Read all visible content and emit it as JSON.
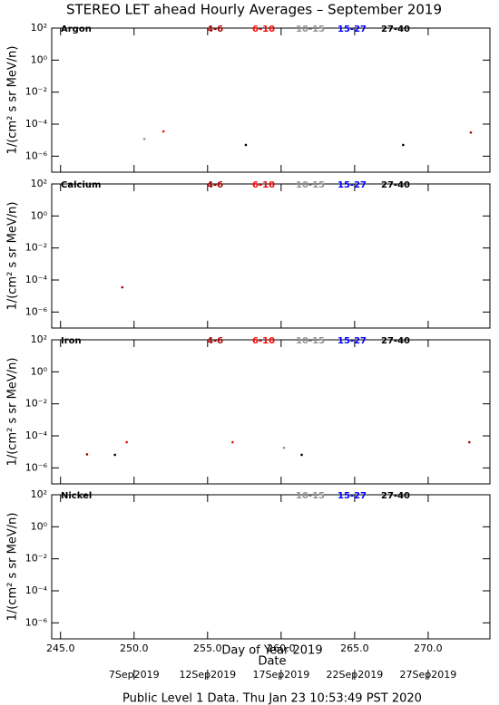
{
  "figure": {
    "title": "STEREO LET ahead Hourly Averages – September 2019",
    "xlabel": "Day of Year 2019",
    "date_label": "Date",
    "date_ticks": [
      {
        "value": 250,
        "label": "7Sep2019"
      },
      {
        "value": 255,
        "label": "12Sep2019"
      },
      {
        "value": 260,
        "label": "17Sep2019"
      },
      {
        "value": 265,
        "label": "22Sep2019"
      },
      {
        "value": 270,
        "label": "27Sep2019"
      }
    ],
    "footer": "Public Level 1 Data. Thu Jan 23 10:53:49 PST 2020"
  },
  "chart_data": [
    {
      "type": "scatter",
      "panel": "Argon",
      "ylabel": "1/(cm² s sr MeV/n)",
      "log_y": true,
      "xlim": [
        244.4,
        274.2
      ],
      "ylim": [
        1e-07,
        100
      ],
      "yticks": [
        {
          "value": 100,
          "label": "10²"
        },
        {
          "value": 1,
          "label": "10⁰"
        },
        {
          "value": 0.01,
          "label": "10⁻²"
        },
        {
          "value": 0.0001,
          "label": "10⁻⁴"
        },
        {
          "value": 1e-06,
          "label": "10⁻⁶"
        }
      ],
      "series": [
        {
          "name": "4-6",
          "color": "#a00000",
          "x": [
            272.9
          ],
          "values": [
            3e-05
          ]
        },
        {
          "name": "6-10",
          "color": "#ff0000",
          "x": [
            252.0
          ],
          "values": [
            3.5e-05
          ]
        },
        {
          "name": "10-15",
          "color": "#909090",
          "x": [
            250.7
          ],
          "values": [
            1.2e-05
          ]
        },
        {
          "name": "15-27",
          "color": "#0000ff",
          "x": [],
          "values": []
        },
        {
          "name": "27-40",
          "color": "#000000",
          "x": [
            257.6,
            268.3
          ],
          "values": [
            5e-06,
            5e-06
          ]
        }
      ]
    },
    {
      "type": "scatter",
      "panel": "Calcium",
      "ylabel": "1/(cm² s sr MeV/n)",
      "log_y": true,
      "xlim": [
        244.4,
        274.2
      ],
      "ylim": [
        1e-07,
        100
      ],
      "yticks": [
        {
          "value": 100,
          "label": "10²"
        },
        {
          "value": 1,
          "label": "10⁰"
        },
        {
          "value": 0.01,
          "label": "10⁻²"
        },
        {
          "value": 0.0001,
          "label": "10⁻⁴"
        },
        {
          "value": 1e-06,
          "label": "10⁻⁶"
        }
      ],
      "series": [
        {
          "name": "4-6",
          "color": "#a00000",
          "x": [
            249.2
          ],
          "values": [
            3.5e-05
          ]
        },
        {
          "name": "6-10",
          "color": "#ff0000",
          "x": [],
          "values": []
        },
        {
          "name": "10-15",
          "color": "#909090",
          "x": [],
          "values": []
        },
        {
          "name": "15-27",
          "color": "#0000ff",
          "x": [],
          "values": []
        },
        {
          "name": "27-40",
          "color": "#000000",
          "x": [],
          "values": []
        }
      ]
    },
    {
      "type": "scatter",
      "panel": "Iron",
      "ylabel": "1/(cm² s sr MeV/n)",
      "log_y": true,
      "xlim": [
        244.4,
        274.2
      ],
      "ylim": [
        1e-07,
        100
      ],
      "yticks": [
        {
          "value": 100,
          "label": "10²"
        },
        {
          "value": 1,
          "label": "10⁰"
        },
        {
          "value": 0.01,
          "label": "10⁻²"
        },
        {
          "value": 0.0001,
          "label": "10⁻⁴"
        },
        {
          "value": 1e-06,
          "label": "10⁻⁶"
        }
      ],
      "series": [
        {
          "name": "4-6",
          "color": "#a00000",
          "x": [
            246.8,
            272.8
          ],
          "values": [
            7e-06,
            4e-05
          ]
        },
        {
          "name": "6-10",
          "color": "#ff0000",
          "x": [
            249.5,
            256.7
          ],
          "values": [
            4e-05,
            4e-05
          ]
        },
        {
          "name": "10-15",
          "color": "#909090",
          "x": [
            260.2
          ],
          "values": [
            1.8e-05
          ]
        },
        {
          "name": "15-27",
          "color": "#0000ff",
          "x": [],
          "values": []
        },
        {
          "name": "27-40",
          "color": "#000000",
          "x": [
            248.7,
            261.4
          ],
          "values": [
            6.5e-06,
            6.5e-06
          ]
        }
      ]
    },
    {
      "type": "scatter",
      "panel": "Nickel",
      "ylabel": "1/(cm² s sr MeV/n)",
      "log_y": true,
      "xlim": [
        244.4,
        274.2
      ],
      "ylim": [
        1e-07,
        100
      ],
      "xticks": [
        {
          "value": 245,
          "label": "245.0"
        },
        {
          "value": 250,
          "label": "250.0"
        },
        {
          "value": 255,
          "label": "255.0"
        },
        {
          "value": 260,
          "label": "260.0"
        },
        {
          "value": 265,
          "label": "265.0"
        },
        {
          "value": 270,
          "label": "270.0"
        }
      ],
      "yticks": [
        {
          "value": 100,
          "label": "10²"
        },
        {
          "value": 1,
          "label": "10⁰"
        },
        {
          "value": 0.01,
          "label": "10⁻²"
        },
        {
          "value": 0.0001,
          "label": "10⁻⁴"
        },
        {
          "value": 1e-06,
          "label": "10⁻⁶"
        }
      ],
      "series": [
        {
          "name": "10-15",
          "color": "#909090",
          "x": [],
          "values": []
        },
        {
          "name": "15-27",
          "color": "#0000ff",
          "x": [],
          "values": []
        },
        {
          "name": "27-40",
          "color": "#000000",
          "x": [],
          "values": []
        }
      ]
    }
  ]
}
